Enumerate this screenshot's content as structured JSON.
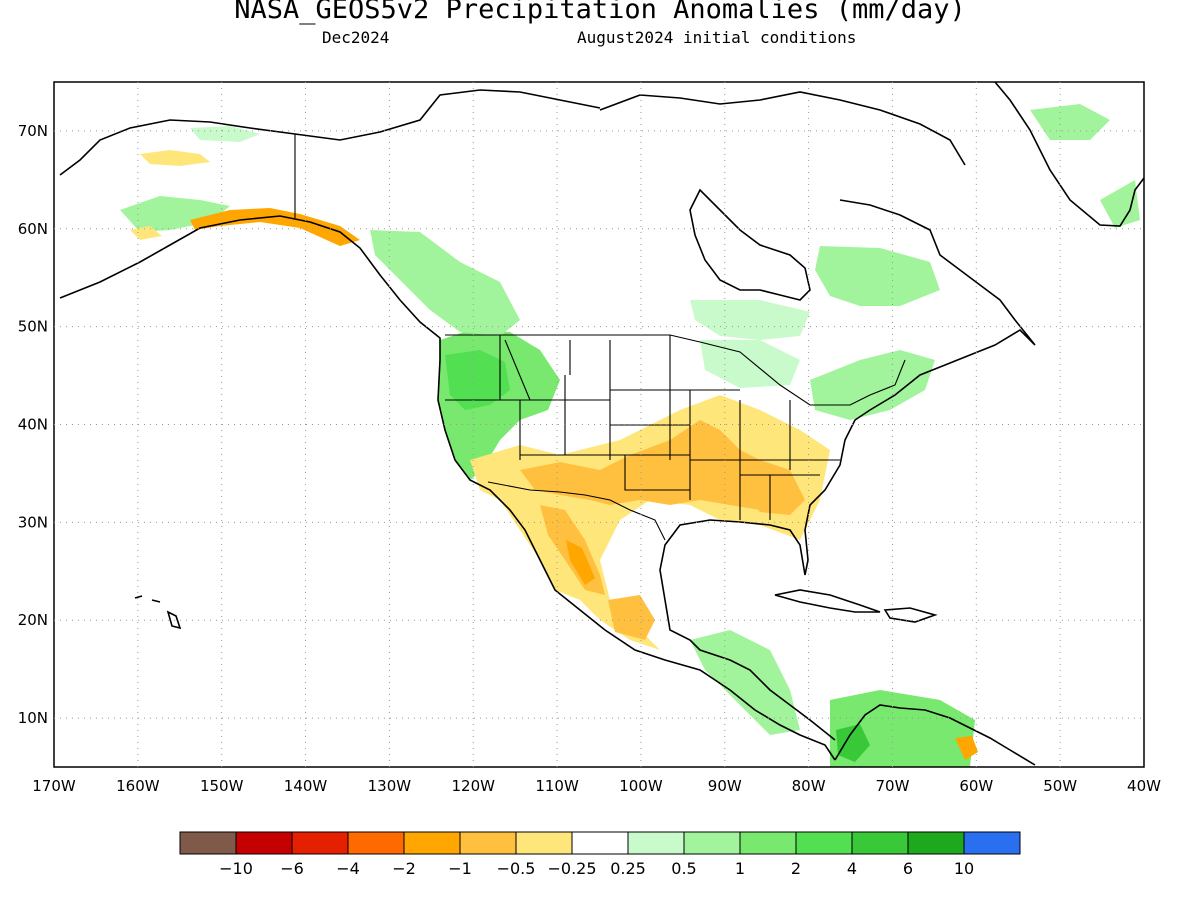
{
  "title": "NASA_GEOS5v2 Precipitation Anomalies (mm/day)",
  "subtitle_left": "Dec2024",
  "subtitle_right": "August2024 initial conditions",
  "map": {
    "projection": "equirectangular",
    "lon_range": [
      -170,
      -40
    ],
    "lat_range": [
      5,
      75
    ],
    "lat_labels": [
      "10N",
      "20N",
      "30N",
      "40N",
      "50N",
      "60N",
      "70N"
    ],
    "lon_labels": [
      "170W",
      "160W",
      "150W",
      "140W",
      "130W",
      "120W",
      "110W",
      "100W",
      "90W",
      "80W",
      "70W",
      "60W",
      "50W",
      "40W"
    ],
    "grid": "dotted"
  },
  "colorbar": {
    "colors": [
      "#7f5a4b",
      "#c40000",
      "#e42000",
      "#ff6a00",
      "#ffa600",
      "#ffc040",
      "#ffe67a",
      "#ffffff",
      "#c8facc",
      "#a2f49c",
      "#78e86e",
      "#52e052",
      "#38c838",
      "#1ea81e",
      "#2a6ff0"
    ],
    "tick_labels": [
      "-10",
      "-6",
      "-4",
      "-2",
      "-1",
      "-0.5",
      "-0.25",
      "0.25",
      "0.5",
      "1",
      "2",
      "4",
      "6",
      "10"
    ]
  }
}
